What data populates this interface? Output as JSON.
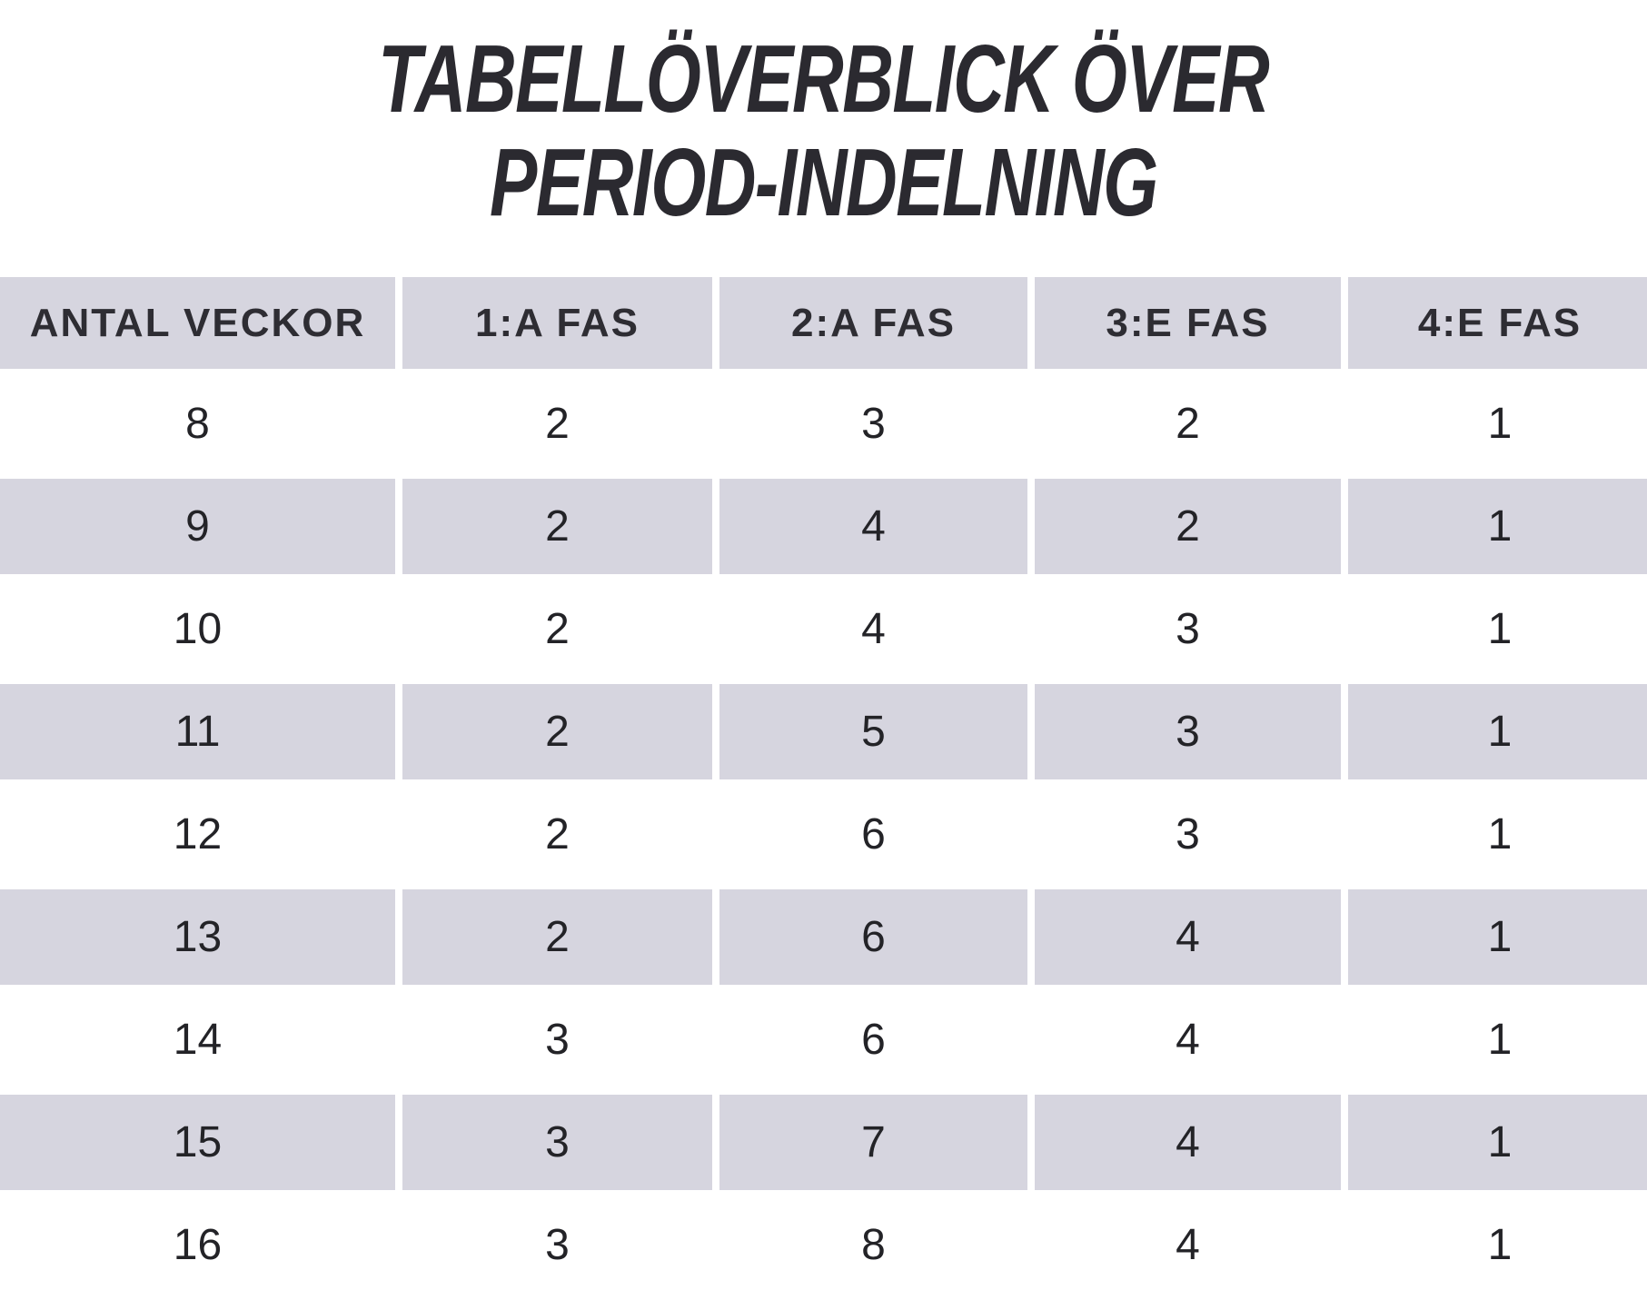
{
  "title": {
    "line1": "TABELLÖVERBLICK ÖVER",
    "line2": "PERIOD-INDELNING"
  },
  "table": {
    "headers": [
      "ANTAL VECKOR",
      "1:A FAS",
      "2:A FAS",
      "3:E FAS",
      "4:E FAS"
    ],
    "rows": [
      [
        "8",
        "2",
        "3",
        "2",
        "1"
      ],
      [
        "9",
        "2",
        "4",
        "2",
        "1"
      ],
      [
        "10",
        "2",
        "4",
        "3",
        "1"
      ],
      [
        "11",
        "2",
        "5",
        "3",
        "1"
      ],
      [
        "12",
        "2",
        "6",
        "3",
        "1"
      ],
      [
        "13",
        "2",
        "6",
        "4",
        "1"
      ],
      [
        "14",
        "3",
        "6",
        "4",
        "1"
      ],
      [
        "15",
        "3",
        "7",
        "4",
        "1"
      ],
      [
        "16",
        "3",
        "8",
        "4",
        "1"
      ]
    ]
  },
  "colors": {
    "background": "#ffffff",
    "row_shaded": "#d6d5df",
    "header_bg": "#d6d5df",
    "title_text": "#2b2a30",
    "header_text": "#2e2d33",
    "digit_text": "#232327"
  },
  "chart_data": {
    "type": "table",
    "title": "TABELLÖVERBLICK ÖVER PERIOD-INDELNING",
    "columns": [
      "ANTAL VECKOR",
      "1:A FAS",
      "2:A FAS",
      "3:E FAS",
      "4:E FAS"
    ],
    "rows": [
      [
        8,
        2,
        3,
        2,
        1
      ],
      [
        9,
        2,
        4,
        2,
        1
      ],
      [
        10,
        2,
        4,
        3,
        1
      ],
      [
        11,
        2,
        5,
        3,
        1
      ],
      [
        12,
        2,
        6,
        3,
        1
      ],
      [
        13,
        2,
        6,
        4,
        1
      ],
      [
        14,
        3,
        6,
        4,
        1
      ],
      [
        15,
        3,
        7,
        4,
        1
      ],
      [
        16,
        3,
        8,
        4,
        1
      ]
    ],
    "layout_hints": {
      "striped_rows": true,
      "stripe_color": "#d6d5df",
      "gridlines": false,
      "full_bleed_width": true
    }
  }
}
